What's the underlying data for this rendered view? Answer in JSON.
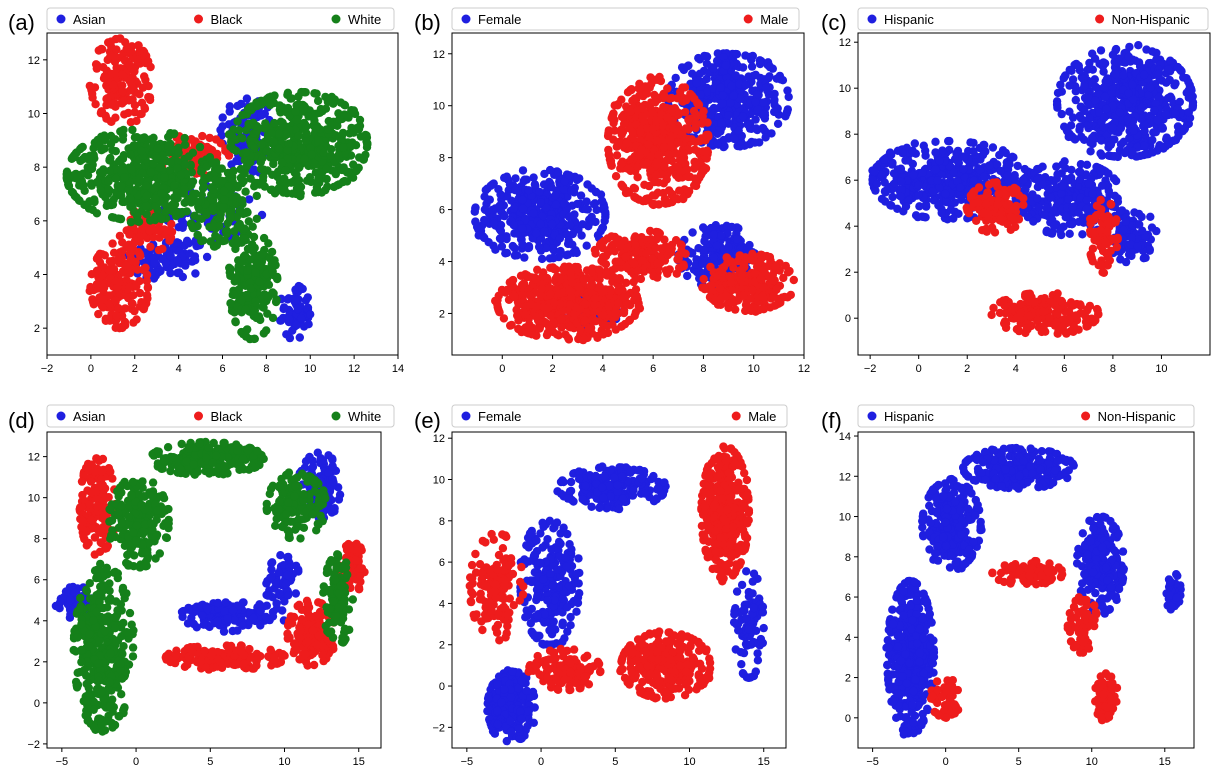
{
  "figure": {
    "panel_labels": [
      "(a)",
      "(b)",
      "(c)",
      "(d)",
      "(e)",
      "(f)"
    ]
  },
  "colors": {
    "blue": "#1f1fe0",
    "red": "#ee1c1c",
    "green": "#15801a"
  },
  "chart_data": [
    {
      "id": "a",
      "label": "(a)",
      "type": "scatter",
      "xlim": [
        -2,
        14
      ],
      "ylim": [
        1,
        13
      ],
      "xticks": [
        -2,
        0,
        2,
        4,
        6,
        8,
        10,
        12,
        14
      ],
      "yticks": [
        2,
        4,
        6,
        8,
        10,
        12
      ],
      "legend": [
        "Asian",
        "Black",
        "White"
      ],
      "series": [
        {
          "name": "Asian",
          "color": "#1f1fe0",
          "clusters": [
            {
              "cx": 7.2,
              "cy": 9.2,
              "rx": 1.3,
              "ry": 1.6,
              "n": 110
            },
            {
              "cx": 3.5,
              "cy": 4.6,
              "rx": 1.8,
              "ry": 0.8,
              "n": 90
            },
            {
              "cx": 9.3,
              "cy": 2.6,
              "rx": 0.7,
              "ry": 1.0,
              "n": 60
            },
            {
              "cx": 5.5,
              "cy": 6.2,
              "rx": 2.2,
              "ry": 1.2,
              "n": 60
            }
          ]
        },
        {
          "name": "Black",
          "color": "#ee1c1c",
          "clusters": [
            {
              "cx": 1.4,
              "cy": 11.2,
              "rx": 1.4,
              "ry": 1.6,
              "n": 170
            },
            {
              "cx": 1.3,
              "cy": 3.6,
              "rx": 1.3,
              "ry": 1.6,
              "n": 170
            },
            {
              "cx": 4.5,
              "cy": 8.4,
              "rx": 1.8,
              "ry": 0.8,
              "n": 80
            },
            {
              "cx": 2.5,
              "cy": 5.6,
              "rx": 1.2,
              "ry": 0.8,
              "n": 70
            }
          ]
        },
        {
          "name": "White",
          "color": "#15801a",
          "clusters": [
            {
              "cx": 2.3,
              "cy": 7.7,
              "rx": 3.4,
              "ry": 1.7,
              "n": 480
            },
            {
              "cx": 9.5,
              "cy": 8.9,
              "rx": 3.1,
              "ry": 1.9,
              "n": 520
            },
            {
              "cx": 7.4,
              "cy": 3.6,
              "rx": 1.1,
              "ry": 2.0,
              "n": 200
            },
            {
              "cx": 6.0,
              "cy": 6.6,
              "rx": 1.6,
              "ry": 1.6,
              "n": 160
            }
          ]
        }
      ]
    },
    {
      "id": "b",
      "label": "(b)",
      "type": "scatter",
      "xlim": [
        -2,
        12
      ],
      "ylim": [
        0.4,
        12.8
      ],
      "xticks": [
        0,
        2,
        4,
        6,
        8,
        10,
        12
      ],
      "yticks": [
        2,
        4,
        6,
        8,
        10,
        12
      ],
      "legend": [
        "Female",
        "Male"
      ],
      "series": [
        {
          "name": "Female",
          "color": "#1f1fe0",
          "clusters": [
            {
              "cx": 1.5,
              "cy": 5.8,
              "rx": 2.6,
              "ry": 1.7,
              "n": 420
            },
            {
              "cx": 9.0,
              "cy": 10.2,
              "rx": 2.4,
              "ry": 1.8,
              "n": 420
            },
            {
              "cx": 8.6,
              "cy": 4.2,
              "rx": 1.6,
              "ry": 1.2,
              "n": 160
            },
            {
              "cx": 3.5,
              "cy": 2.2,
              "rx": 1.2,
              "ry": 0.8,
              "n": 80
            }
          ]
        },
        {
          "name": "Male",
          "color": "#ee1c1c",
          "clusters": [
            {
              "cx": 6.2,
              "cy": 8.6,
              "rx": 2.0,
              "ry": 2.4,
              "n": 520
            },
            {
              "cx": 2.6,
              "cy": 2.4,
              "rx": 2.8,
              "ry": 1.4,
              "n": 480
            },
            {
              "cx": 9.8,
              "cy": 3.2,
              "rx": 1.8,
              "ry": 1.1,
              "n": 240
            },
            {
              "cx": 5.5,
              "cy": 4.2,
              "rx": 1.8,
              "ry": 1.0,
              "n": 180
            }
          ]
        }
      ]
    },
    {
      "id": "c",
      "label": "(c)",
      "type": "scatter",
      "xlim": [
        -2.5,
        12
      ],
      "ylim": [
        -1.6,
        12.4
      ],
      "xticks": [
        -2,
        0,
        2,
        4,
        6,
        8,
        10
      ],
      "yticks": [
        0,
        2,
        4,
        6,
        8,
        10,
        12
      ],
      "legend": [
        "Hispanic",
        "Non-Hispanic"
      ],
      "series": [
        {
          "name": "Hispanic",
          "color": "#1f1fe0",
          "clusters": [
            {
              "cx": 1.3,
              "cy": 6.0,
              "rx": 3.2,
              "ry": 1.7,
              "n": 460
            },
            {
              "cx": 8.5,
              "cy": 9.4,
              "rx": 2.8,
              "ry": 2.4,
              "n": 560
            },
            {
              "cx": 6.2,
              "cy": 5.2,
              "rx": 2.2,
              "ry": 1.6,
              "n": 260
            },
            {
              "cx": 8.8,
              "cy": 3.6,
              "rx": 1.0,
              "ry": 1.2,
              "n": 100
            }
          ]
        },
        {
          "name": "Non-Hispanic",
          "color": "#ee1c1c",
          "clusters": [
            {
              "cx": 3.2,
              "cy": 4.8,
              "rx": 1.2,
              "ry": 1.1,
              "n": 120
            },
            {
              "cx": 5.2,
              "cy": 0.2,
              "rx": 2.2,
              "ry": 0.9,
              "n": 180
            },
            {
              "cx": 7.6,
              "cy": 3.6,
              "rx": 0.6,
              "ry": 1.6,
              "n": 70
            }
          ]
        }
      ]
    },
    {
      "id": "d",
      "label": "(d)",
      "type": "scatter",
      "xlim": [
        -6,
        16.5
      ],
      "ylim": [
        -2.2,
        13.2
      ],
      "xticks": [
        -5,
        0,
        5,
        10,
        15
      ],
      "yticks": [
        -2,
        0,
        2,
        4,
        6,
        8,
        10,
        12
      ],
      "legend": [
        "Asian",
        "Black",
        "White"
      ],
      "series": [
        {
          "name": "Asian",
          "color": "#1f1fe0",
          "clusters": [
            {
              "cx": 12.4,
              "cy": 10.6,
              "rx": 1.4,
              "ry": 1.6,
              "n": 120
            },
            {
              "cx": 6.5,
              "cy": 4.2,
              "rx": 3.6,
              "ry": 0.7,
              "n": 120
            },
            {
              "cx": -4.2,
              "cy": 5.0,
              "rx": 1.2,
              "ry": 0.9,
              "n": 50
            },
            {
              "cx": 9.8,
              "cy": 6.0,
              "rx": 1.2,
              "ry": 1.2,
              "n": 60
            }
          ]
        },
        {
          "name": "Black",
          "color": "#ee1c1c",
          "clusters": [
            {
              "cx": -2.6,
              "cy": 9.6,
              "rx": 1.2,
              "ry": 2.4,
              "n": 150
            },
            {
              "cx": 6.0,
              "cy": 2.2,
              "rx": 4.0,
              "ry": 0.6,
              "n": 160
            },
            {
              "cx": 11.8,
              "cy": 3.4,
              "rx": 1.6,
              "ry": 1.6,
              "n": 140
            },
            {
              "cx": 14.6,
              "cy": 6.6,
              "rx": 0.9,
              "ry": 1.2,
              "n": 70
            }
          ]
        },
        {
          "name": "White",
          "color": "#15801a",
          "clusters": [
            {
              "cx": -2.2,
              "cy": 2.6,
              "rx": 2.0,
              "ry": 4.0,
              "n": 380
            },
            {
              "cx": 0.2,
              "cy": 8.8,
              "rx": 2.0,
              "ry": 2.2,
              "n": 220
            },
            {
              "cx": 4.8,
              "cy": 11.9,
              "rx": 3.8,
              "ry": 0.8,
              "n": 240
            },
            {
              "cx": 10.8,
              "cy": 9.6,
              "rx": 2.0,
              "ry": 1.6,
              "n": 150
            },
            {
              "cx": 13.6,
              "cy": 5.0,
              "rx": 1.0,
              "ry": 2.2,
              "n": 110
            }
          ]
        }
      ]
    },
    {
      "id": "e",
      "label": "(e)",
      "type": "scatter",
      "xlim": [
        -6,
        16.5
      ],
      "ylim": [
        -3,
        12.3
      ],
      "xticks": [
        -5,
        0,
        5,
        10,
        15
      ],
      "yticks": [
        -2,
        0,
        2,
        4,
        6,
        8,
        10,
        12
      ],
      "legend": [
        "Female",
        "Male"
      ],
      "series": [
        {
          "name": "Female",
          "color": "#1f1fe0",
          "clusters": [
            {
              "cx": -2.0,
              "cy": -1.0,
              "rx": 1.6,
              "ry": 1.7,
              "n": 240
            },
            {
              "cx": 0.6,
              "cy": 5.0,
              "rx": 2.0,
              "ry": 3.0,
              "n": 240
            },
            {
              "cx": 4.8,
              "cy": 9.6,
              "rx": 3.6,
              "ry": 1.0,
              "n": 230
            },
            {
              "cx": 14.0,
              "cy": 3.0,
              "rx": 1.0,
              "ry": 2.6,
              "n": 90
            }
          ]
        },
        {
          "name": "Male",
          "color": "#ee1c1c",
          "clusters": [
            {
              "cx": 12.4,
              "cy": 8.4,
              "rx": 1.6,
              "ry": 3.2,
              "n": 380
            },
            {
              "cx": 8.4,
              "cy": 1.0,
              "rx": 3.0,
              "ry": 1.6,
              "n": 300
            },
            {
              "cx": -3.0,
              "cy": 4.8,
              "rx": 1.8,
              "ry": 2.6,
              "n": 140
            },
            {
              "cx": 1.6,
              "cy": 0.8,
              "rx": 2.4,
              "ry": 1.0,
              "n": 120
            }
          ]
        }
      ]
    },
    {
      "id": "f",
      "label": "(f)",
      "type": "scatter",
      "xlim": [
        -6,
        17
      ],
      "ylim": [
        -1.5,
        14.2
      ],
      "xticks": [
        -5,
        0,
        5,
        10,
        15
      ],
      "yticks": [
        0,
        2,
        4,
        6,
        8,
        10,
        12,
        14
      ],
      "legend": [
        "Hispanic",
        "Non-Hispanic"
      ],
      "series": [
        {
          "name": "Hispanic",
          "color": "#1f1fe0",
          "clusters": [
            {
              "cx": -2.4,
              "cy": 3.0,
              "rx": 1.6,
              "ry": 3.8,
              "n": 420
            },
            {
              "cx": 0.4,
              "cy": 9.6,
              "rx": 2.0,
              "ry": 2.2,
              "n": 260
            },
            {
              "cx": 5.0,
              "cy": 12.4,
              "rx": 3.8,
              "ry": 1.0,
              "n": 260
            },
            {
              "cx": 10.6,
              "cy": 7.6,
              "rx": 1.6,
              "ry": 2.4,
              "n": 200
            },
            {
              "cx": 15.6,
              "cy": 6.2,
              "rx": 0.5,
              "ry": 1.0,
              "n": 40
            }
          ]
        },
        {
          "name": "Non-Hispanic",
          "color": "#ee1c1c",
          "clusters": [
            {
              "cx": 5.6,
              "cy": 7.2,
              "rx": 2.4,
              "ry": 0.6,
              "n": 90
            },
            {
              "cx": 9.4,
              "cy": 4.6,
              "rx": 1.0,
              "ry": 1.4,
              "n": 60
            },
            {
              "cx": 11.0,
              "cy": 1.0,
              "rx": 0.8,
              "ry": 1.2,
              "n": 70
            },
            {
              "cx": 0.0,
              "cy": 1.0,
              "rx": 1.0,
              "ry": 1.0,
              "n": 50
            }
          ]
        }
      ]
    }
  ]
}
